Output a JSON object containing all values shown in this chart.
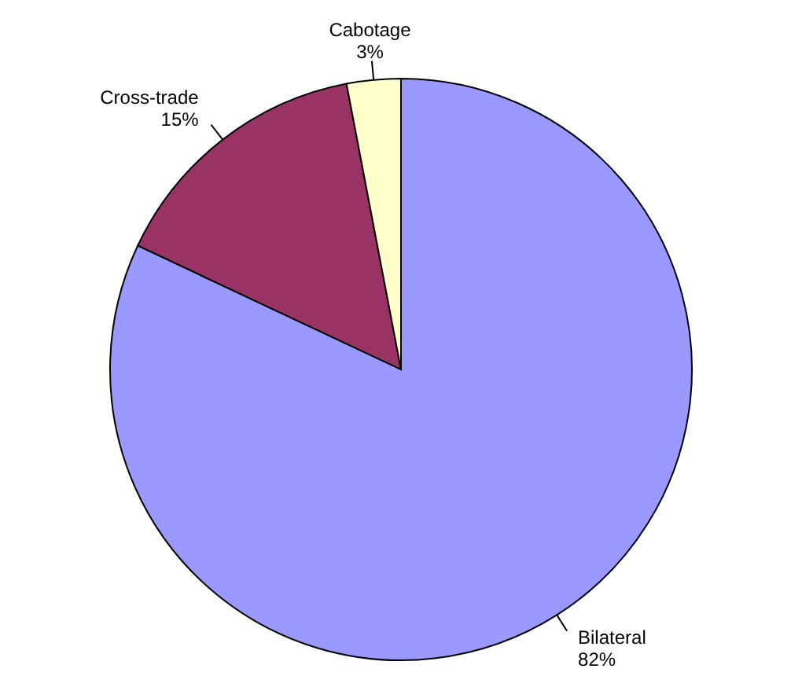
{
  "chart_data": {
    "type": "pie",
    "categories": [
      "Bilateral",
      "Cross-trade",
      "Cabotage"
    ],
    "values": [
      82,
      15,
      3
    ],
    "colors": [
      "#9999ff",
      "#993366",
      "#ffffcc"
    ],
    "value_labels": [
      "82%",
      "15%",
      "3%"
    ]
  }
}
